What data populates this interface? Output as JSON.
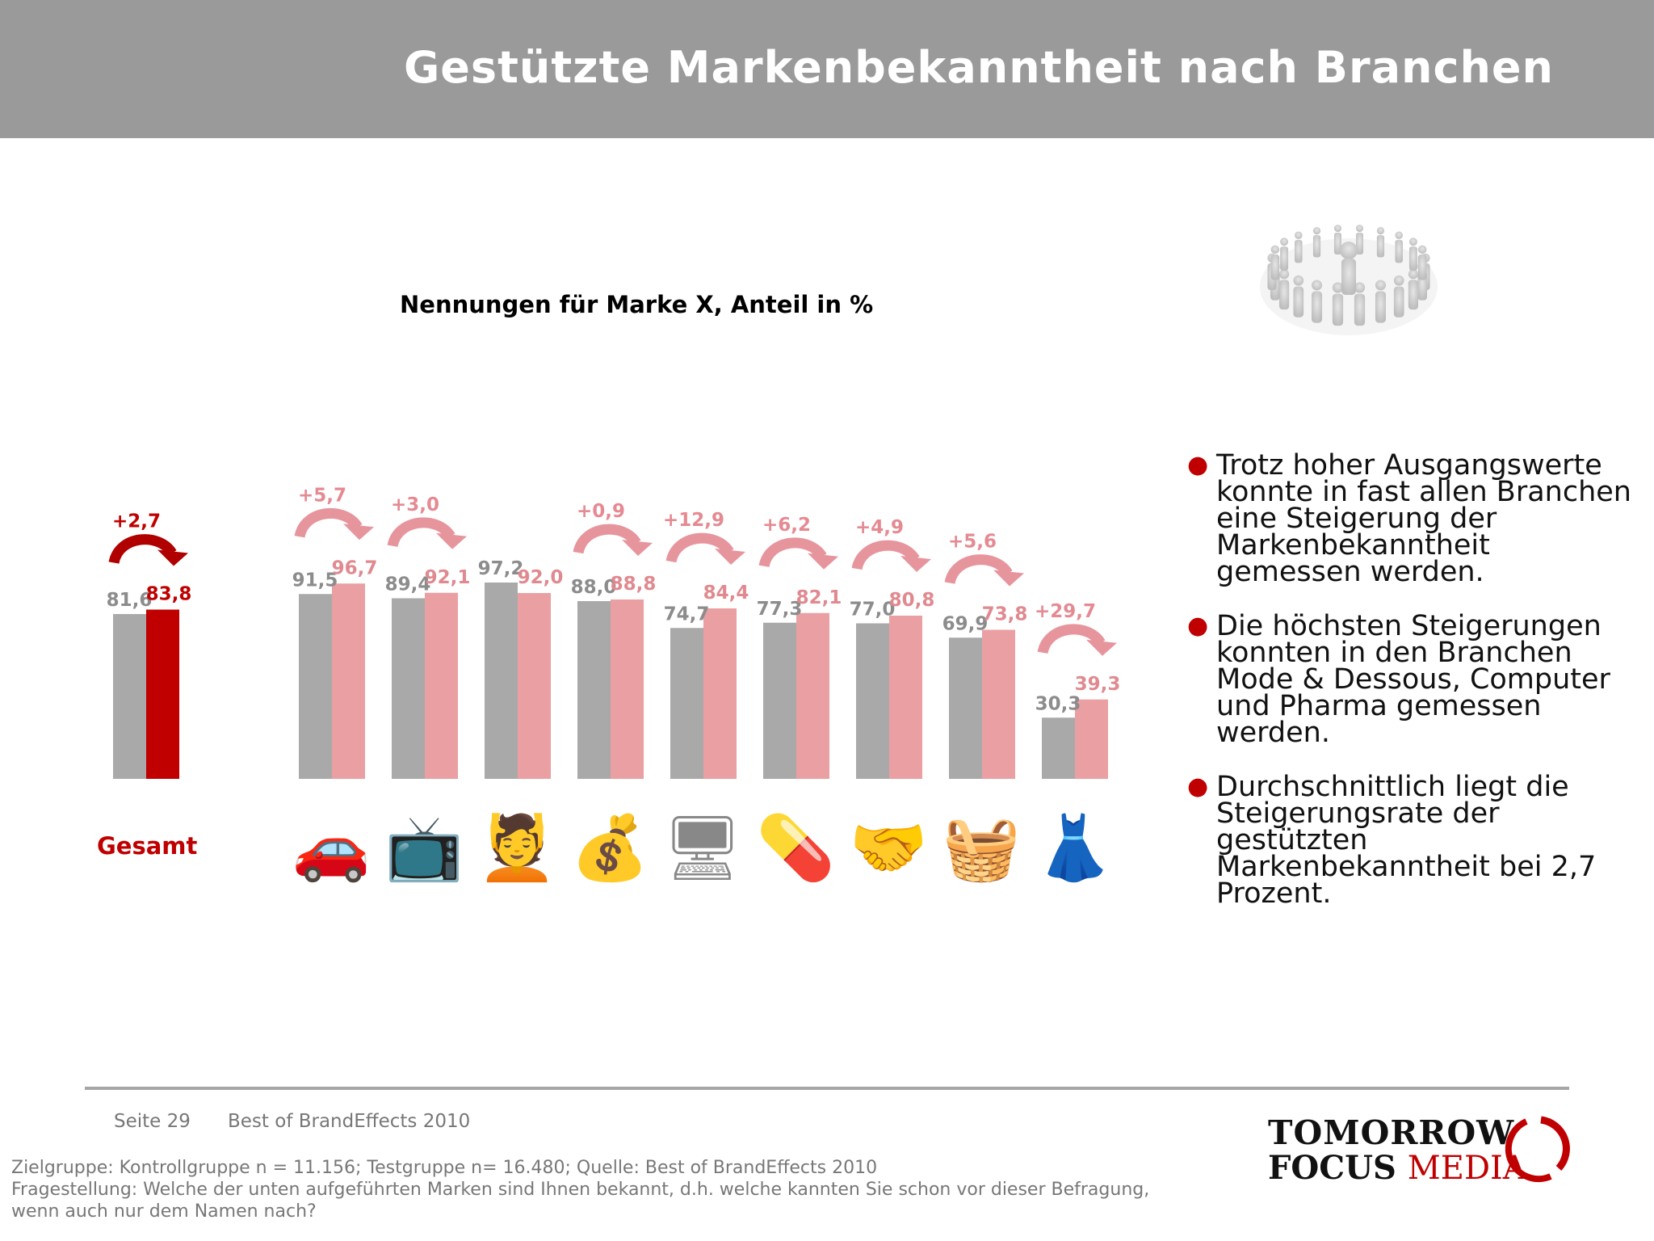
{
  "header": {
    "title": "Gestützte Markenbekanntheit nach Branchen"
  },
  "chart_data": {
    "type": "bar",
    "title": "Nennungen für Marke X, Anteil in %",
    "series": [
      {
        "name": "Kontrollgruppe",
        "color": "#a9a9a9"
      },
      {
        "name": "Testgruppe",
        "color": "#ea9fa2"
      }
    ],
    "groups": [
      {
        "category": "Gesamt",
        "icon": "total",
        "control": 81.6,
        "control_label": "81,6",
        "test": 83.8,
        "test_label": "83,8",
        "delta": "+2,7",
        "highlight": true
      },
      {
        "category": "Auto",
        "icon": "car-icon",
        "control": 91.5,
        "control_label": "91,5",
        "test": 96.7,
        "test_label": "96,7",
        "delta": "+5,7",
        "highlight": false
      },
      {
        "category": "Elektronik",
        "icon": "electronics-icon",
        "control": 89.4,
        "control_label": "89,4",
        "test": 92.1,
        "test_label": "92,1",
        "delta": "+3,0",
        "highlight": false
      },
      {
        "category": "Kosmetik",
        "icon": "cosmetics-icon",
        "control": 97.2,
        "control_label": "97,2",
        "test": 92.0,
        "test_label": "92,0",
        "delta": "",
        "highlight": false
      },
      {
        "category": "Finanzen",
        "icon": "money-icon",
        "control": 88.0,
        "control_label": "88,0",
        "test": 88.8,
        "test_label": "88,8",
        "delta": "+0,9",
        "highlight": false
      },
      {
        "category": "Computer",
        "icon": "computer-icon",
        "control": 74.7,
        "control_label": "74,7",
        "test": 84.4,
        "test_label": "84,4",
        "delta": "+12,9",
        "highlight": false
      },
      {
        "category": "Pharma",
        "icon": "pills-icon",
        "control": 77.3,
        "control_label": "77,3",
        "test": 82.1,
        "test_label": "82,1",
        "delta": "+6,2",
        "highlight": false
      },
      {
        "category": "Dienstleistung",
        "icon": "handshake-icon",
        "control": 77.0,
        "control_label": "77,0",
        "test": 80.8,
        "test_label": "80,8",
        "delta": "+4,9",
        "highlight": false
      },
      {
        "category": "Lebensmittel",
        "icon": "basket-icon",
        "control": 69.9,
        "control_label": "69,9",
        "test": 73.8,
        "test_label": "73,8",
        "delta": "+5,6",
        "highlight": false
      },
      {
        "category": "Mode & Dessous",
        "icon": "fashion-icon",
        "control": 30.3,
        "control_label": "30,3",
        "test": 39.3,
        "test_label": "39,3",
        "delta": "+29,7",
        "highlight": false
      }
    ],
    "ylim": [
      0,
      100
    ],
    "grid": false,
    "xlabel": "",
    "ylabel": ""
  },
  "categories": {
    "total_label": "Gesamt"
  },
  "bullets": [
    "Trotz hoher Ausgangswerte konnte in fast allen Branchen eine Steigerung der Markenbekanntheit gemessen werden.",
    "Die höchsten Steigerungen konnten in den Branchen Mode & Dessous, Computer und Pharma gemessen werden.",
    "Durchschnittlich liegt die Steigerungsrate der gestützten Markenbekanntheit bei 2,7 Prozent."
  ],
  "footer": {
    "page": "Seite 29",
    "title": "Best of BrandEffects 2010",
    "note_line1": "Zielgruppe: Kontrollgruppe n = 11.156; Testgruppe n= 16.480; Quelle: Best of BrandEffects 2010",
    "note_line2": "Fragestellung: Welche der unten aufgeführten Marken sind Ihnen bekannt, d.h. welche kannten Sie schon vor dieser Befragung,",
    "note_line3": "wenn auch nur dem Namen nach?"
  },
  "logo": {
    "line1": "TOMORROW",
    "line2a": "FOCUS",
    "line2b": "MEDIA"
  },
  "colors": {
    "accent": "#c00000",
    "control": "#a9a9a9",
    "test": "#ea9fa2",
    "header": "#9a9a9a"
  }
}
